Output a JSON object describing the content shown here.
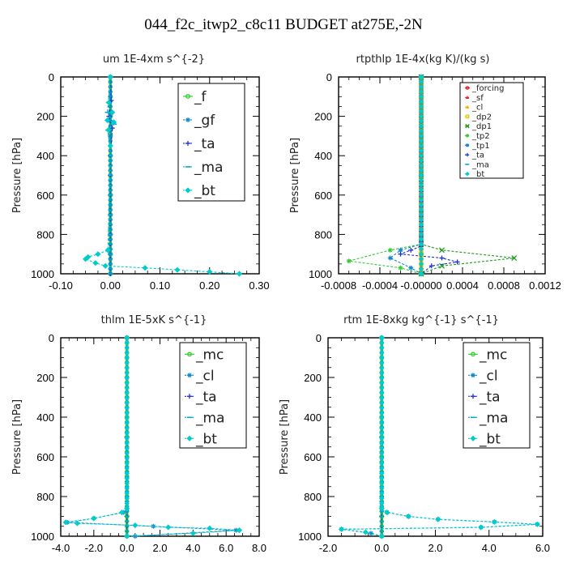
{
  "title": "044_f2c_itwp2_c8c11  BUDGET at275E,-2N",
  "colors": {
    "green": "#33cc33",
    "lightgreen": "#66dd66",
    "red": "#ee2222",
    "orange": "#ffaa00",
    "yellow": "#ddcc00",
    "darkgreen": "#229922",
    "blue": "#2233cc",
    "steelblue": "#1188cc",
    "cyan": "#00cccc",
    "black": "#000000"
  },
  "chart_data": [
    {
      "type": "line",
      "title": "um   1E-4xm s^{-2}",
      "ylabel": "Pressure [hPa]",
      "xlim": [
        -0.1,
        0.3
      ],
      "ylim": [
        1000,
        0
      ],
      "xticks": [
        "-0.10",
        "0.00",
        "0.10",
        "0.20",
        "0.30"
      ],
      "yticks": [
        "0",
        "200",
        "400",
        "600",
        "800",
        "1000"
      ],
      "legend_position": "top-right",
      "series": [
        {
          "name": "_f",
          "color": "#33cc33",
          "marker": "circle",
          "x": [
            0,
            0,
            0,
            0,
            0,
            0,
            0,
            0,
            0,
            0,
            0
          ],
          "y": [
            0,
            100,
            200,
            300,
            400,
            500,
            600,
            700,
            800,
            900,
            1000
          ]
        },
        {
          "name": "_gf",
          "color": "#1188cc",
          "marker": "star",
          "x": [
            0,
            0.0,
            0,
            0.0,
            0,
            0,
            0,
            0,
            0,
            0,
            0
          ],
          "y": [
            0,
            100,
            200,
            300,
            400,
            500,
            600,
            700,
            800,
            900,
            1000
          ]
        },
        {
          "name": "_ta",
          "color": "#2233cc",
          "marker": "plus",
          "x": [
            0,
            0.002,
            -0.003,
            0.004,
            0,
            0,
            0,
            0,
            0,
            0,
            0
          ],
          "y": [
            0,
            120,
            200,
            260,
            400,
            500,
            600,
            700,
            800,
            900,
            1000
          ]
        },
        {
          "name": "_ma",
          "color": "#00aacc",
          "marker": "dash",
          "x": [
            0,
            -0.004,
            -0.006,
            0.006,
            0.008,
            -0.005,
            0,
            0,
            0,
            0,
            0
          ],
          "y": [
            0,
            130,
            180,
            230,
            240,
            270,
            400,
            600,
            800,
            900,
            1000
          ]
        },
        {
          "name": "_bt",
          "color": "#00cccc",
          "marker": "diamond",
          "x": [
            0,
            -0.003,
            0.004,
            -0.006,
            0.007,
            -0.004,
            0,
            -0.005,
            -0.025,
            -0.045,
            -0.05,
            -0.03,
            -0.01,
            0.07,
            0.135,
            0.2,
            0.26
          ],
          "y": [
            0,
            130,
            180,
            220,
            230,
            270,
            350,
            880,
            900,
            915,
            925,
            945,
            960,
            970,
            980,
            990,
            1000
          ]
        }
      ]
    },
    {
      "type": "line",
      "title": "rtpthlp   1E-4x(kg K)/(kg s)",
      "ylabel": "Pressure [hPa]",
      "xlim": [
        -0.0008,
        0.0012
      ],
      "ylim": [
        1000,
        0
      ],
      "xticks": [
        "-0.0008",
        "-0.0004",
        "-0.00000",
        "0.0004",
        "0.0008",
        "0.0012"
      ],
      "yticks": [
        "0",
        "200",
        "400",
        "600",
        "800",
        "1000"
      ],
      "legend_position": "top-right",
      "series": [
        {
          "name": "_forcing",
          "color": "#ee2222",
          "marker": "circle",
          "x": [
            0,
            0,
            0,
            0,
            0,
            0,
            0,
            0,
            0,
            0,
            0
          ],
          "y": [
            0,
            100,
            200,
            300,
            400,
            500,
            600,
            700,
            800,
            900,
            1000
          ]
        },
        {
          "name": "_sf",
          "color": "#ee2222",
          "marker": "triangle",
          "x": [
            0,
            0,
            0,
            0
          ],
          "y": [
            0,
            500,
            900,
            1000
          ]
        },
        {
          "name": "_cl",
          "color": "#ffaa00",
          "marker": "triangle",
          "x": [
            0,
            0,
            0,
            0
          ],
          "y": [
            0,
            500,
            900,
            1000
          ]
        },
        {
          "name": "_dp2",
          "color": "#ddcc00",
          "marker": "square",
          "x": [
            0,
            0,
            0,
            0
          ],
          "y": [
            0,
            500,
            900,
            1000
          ]
        },
        {
          "name": "_dp1",
          "color": "#229922",
          "marker": "x",
          "x": [
            0,
            0,
            0.0002,
            0.0009,
            0.0002,
            0
          ],
          "y": [
            0,
            850,
            880,
            920,
            960,
            1000
          ]
        },
        {
          "name": "_tp2",
          "color": "#33cc33",
          "marker": "star",
          "x": [
            0,
            0,
            -0.0003,
            -0.0007,
            -0.0002,
            0
          ],
          "y": [
            0,
            850,
            880,
            935,
            970,
            1000
          ]
        },
        {
          "name": "_tp1",
          "color": "#1188cc",
          "marker": "star",
          "x": [
            0,
            0,
            -0.0002,
            -0.0003,
            -0.0001,
            0
          ],
          "y": [
            0,
            850,
            880,
            920,
            970,
            1000
          ]
        },
        {
          "name": "_ta",
          "color": "#2233cc",
          "marker": "plus",
          "x": [
            0,
            0,
            -0.0001,
            -0.0002,
            0.0002,
            0.00035,
            0.0001,
            0
          ],
          "y": [
            0,
            860,
            880,
            900,
            920,
            940,
            960,
            1000
          ]
        },
        {
          "name": "_ma",
          "color": "#00aacc",
          "marker": "dash",
          "x": [
            0,
            0,
            0
          ],
          "y": [
            0,
            500,
            1000
          ]
        },
        {
          "name": "_bt",
          "color": "#00cccc",
          "marker": "diamond",
          "x": [
            0,
            0,
            0
          ],
          "y": [
            0,
            500,
            1000
          ]
        }
      ]
    },
    {
      "type": "line",
      "title": "thlm   1E-5xK  s^{-1}",
      "ylabel": "Pressure [hPa]",
      "xlim": [
        -4,
        8
      ],
      "ylim": [
        1000,
        0
      ],
      "xticks": [
        "-4.0",
        "-2.0",
        "0.0",
        "2.0",
        "4.0",
        "6.0",
        "8.0"
      ],
      "yticks": [
        "0",
        "200",
        "400",
        "600",
        "800",
        "1000"
      ],
      "legend_position": "top-right",
      "series": [
        {
          "name": "_mc",
          "color": "#33cc33",
          "marker": "circle",
          "x": [
            0,
            0,
            0,
            0,
            0,
            0,
            0,
            0,
            0,
            0,
            0
          ],
          "y": [
            0,
            100,
            200,
            300,
            400,
            500,
            600,
            700,
            800,
            900,
            1000
          ]
        },
        {
          "name": "_cl",
          "color": "#1188cc",
          "marker": "star",
          "x": [
            0,
            0,
            -0.2,
            -2.0,
            -3.6,
            1.6,
            6.6,
            0.5
          ],
          "y": [
            0,
            860,
            880,
            910,
            930,
            950,
            970,
            1000
          ]
        },
        {
          "name": "_ta",
          "color": "#2233cc",
          "marker": "plus",
          "x": [
            0,
            0,
            0,
            0
          ],
          "y": [
            0,
            500,
            900,
            1000
          ]
        },
        {
          "name": "_ma",
          "color": "#00aacc",
          "marker": "dash",
          "x": [
            0,
            0,
            0
          ],
          "y": [
            0,
            500,
            1000
          ]
        },
        {
          "name": "_bt",
          "color": "#00cccc",
          "marker": "diamond",
          "x": [
            0,
            0,
            -0.3,
            -2.0,
            -3.7,
            -3.0,
            0.5,
            2.5,
            5.0,
            6.8,
            4.0,
            0
          ],
          "y": [
            0,
            860,
            880,
            910,
            930,
            935,
            945,
            955,
            960,
            970,
            985,
            1000
          ]
        }
      ]
    },
    {
      "type": "line",
      "title": "rtm   1E-8xkg kg^{-1} s^{-1}",
      "ylabel": "Pressure [hPa]",
      "xlim": [
        -2,
        6
      ],
      "ylim": [
        1000,
        0
      ],
      "xticks": [
        "-2.0",
        "0.0",
        "2.0",
        "4.0",
        "6.0"
      ],
      "yticks": [
        "0",
        "200",
        "400",
        "600",
        "800",
        "1000"
      ],
      "legend_position": "top-right",
      "series": [
        {
          "name": "_mc",
          "color": "#33cc33",
          "marker": "circle",
          "x": [
            0,
            0,
            0,
            0,
            0,
            0,
            0,
            0,
            0,
            0,
            0
          ],
          "y": [
            0,
            100,
            200,
            300,
            400,
            500,
            600,
            700,
            800,
            900,
            1000
          ]
        },
        {
          "name": "_cl",
          "color": "#1188cc",
          "marker": "star",
          "x": [
            0,
            0,
            0.2,
            1.0,
            2.1,
            4.2,
            5.8,
            3.7,
            -1.5,
            -0.4,
            0
          ],
          "y": [
            0,
            860,
            880,
            900,
            915,
            928,
            940,
            955,
            965,
            985,
            1000
          ]
        },
        {
          "name": "_ta",
          "color": "#2233cc",
          "marker": "plus",
          "x": [
            0,
            0,
            0,
            0
          ],
          "y": [
            0,
            500,
            900,
            1000
          ]
        },
        {
          "name": "_ma",
          "color": "#00aacc",
          "marker": "dash",
          "x": [
            0,
            0,
            0
          ],
          "y": [
            0,
            500,
            1000
          ]
        },
        {
          "name": "_bt",
          "color": "#00cccc",
          "marker": "diamond",
          "x": [
            0,
            0,
            0.2,
            1.0,
            2.1,
            4.2,
            5.8,
            3.7,
            -1.5,
            -0.6,
            0
          ],
          "y": [
            0,
            860,
            880,
            900,
            915,
            928,
            940,
            955,
            965,
            980,
            1000
          ]
        }
      ]
    }
  ]
}
